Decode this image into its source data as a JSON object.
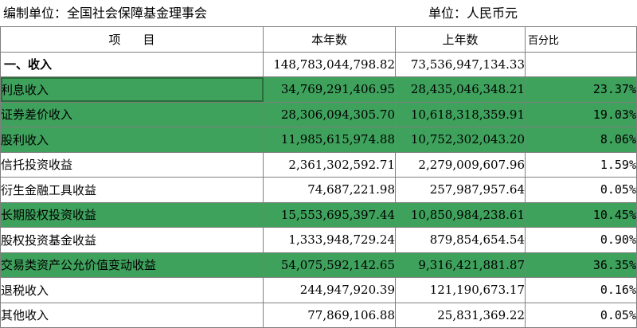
{
  "header_line": {
    "unit_org": "编制单位：全国社会保障基金理事会",
    "currency": "单位：人民币元"
  },
  "columns": {
    "item": "项目",
    "current_year": "本年数",
    "previous_year": "上年数",
    "percent": "百分比"
  },
  "colors": {
    "highlight": "#3ea15c",
    "grid": "#7f7f7f"
  },
  "rows": [
    {
      "label": "一、收入",
      "current": "148,783,044,798.82",
      "previous": "73,536,947,134.33",
      "percent": "",
      "highlight": false,
      "section": true
    },
    {
      "label": "利息收入",
      "current": "34,769,291,406.95",
      "previous": "28,435,046,348.21",
      "percent": "23.37%",
      "highlight": true
    },
    {
      "label": "证券差价收入",
      "current": "28,306,094,305.70",
      "previous": "10,618,318,359.91",
      "percent": "19.03%",
      "highlight": true
    },
    {
      "label": "股利收入",
      "current": "11,985,615,974.88",
      "previous": "10,752,302,043.20",
      "percent": "8.06%",
      "highlight": true
    },
    {
      "label": "信托投资收益",
      "current": "2,361,302,592.71",
      "previous": "2,279,009,607.96",
      "percent": "1.59%",
      "highlight": false
    },
    {
      "label": "衍生金融工具收益",
      "current": "74,687,221.98",
      "previous": "257,987,957.64",
      "percent": "0.05%",
      "highlight": false
    },
    {
      "label": "长期股权投资收益",
      "current": "15,553,695,397.44",
      "previous": "10,850,984,238.61",
      "percent": "10.45%",
      "highlight": true
    },
    {
      "label": "股权投资基金收益",
      "current": "1,333,948,729.24",
      "previous": "879,854,654.54",
      "percent": "0.90%",
      "highlight": false
    },
    {
      "label": "交易类资产公允价值变动收益",
      "current": "54,075,592,142.65",
      "previous": "9,316,421,881.87",
      "percent": "36.35%",
      "highlight": true
    },
    {
      "label": "退税收入",
      "current": "244,947,920.39",
      "previous": "121,190,673.17",
      "percent": "0.16%",
      "highlight": false
    },
    {
      "label": "其他收入",
      "current": "77,869,106.88",
      "previous": "25,831,369.22",
      "percent": "0.05%",
      "highlight": false
    }
  ]
}
